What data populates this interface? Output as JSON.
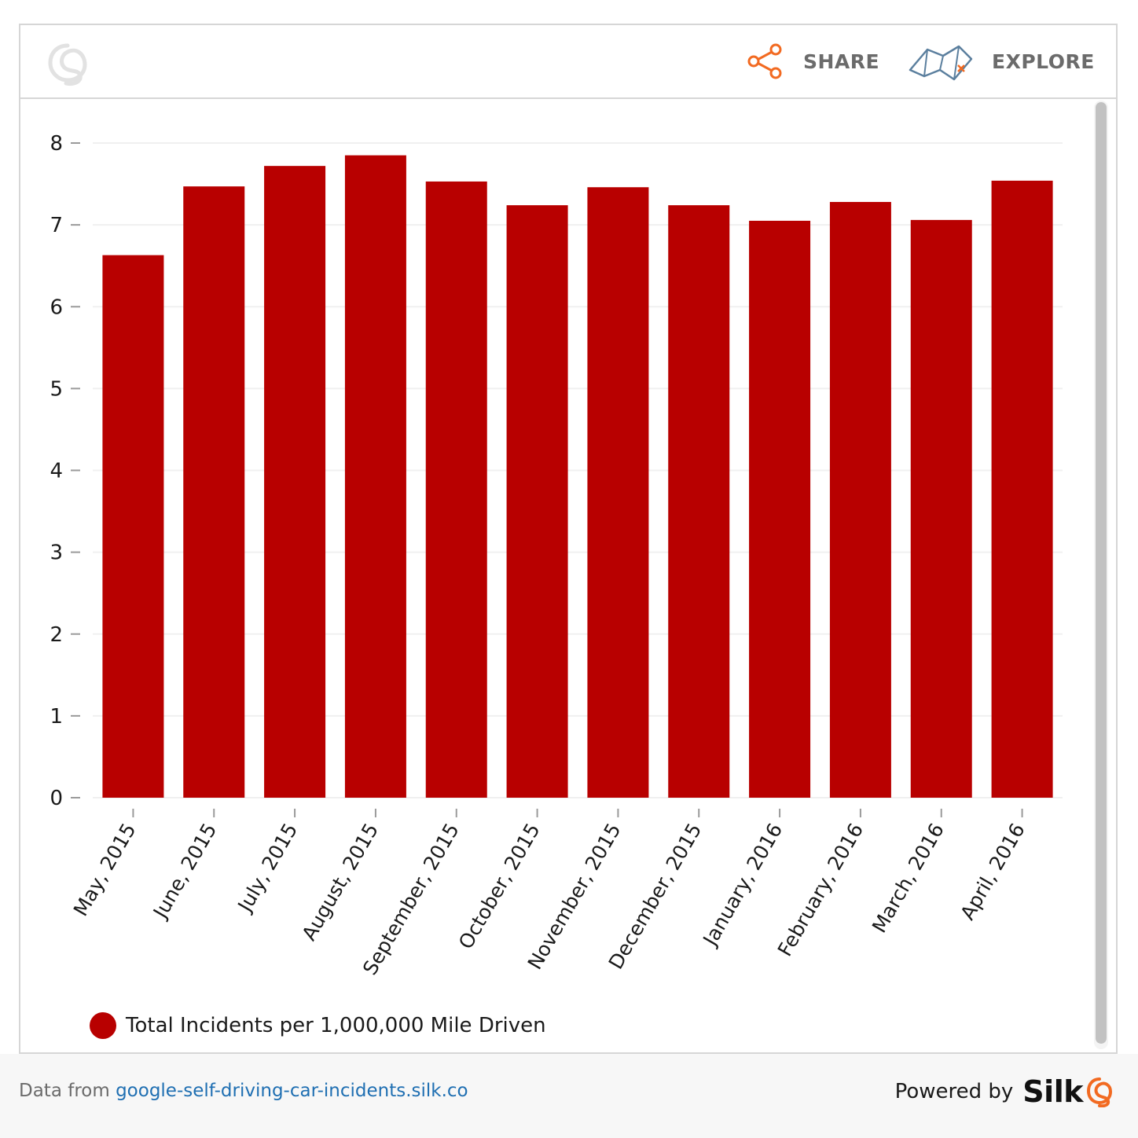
{
  "header": {
    "share_label": "SHARE",
    "explore_label": "EXPLORE",
    "logo_icon": "silk-leaf-icon",
    "share_icon": "share-nodes-icon",
    "explore_icon": "map-icon"
  },
  "colors": {
    "bar": "#b80000",
    "share_accent": "#f26a21",
    "explore_accent": "#5b7f9e",
    "link": "#1f6fb2",
    "brand_accent": "#f26a21"
  },
  "chart_data": {
    "type": "bar",
    "categories": [
      "May, 2015",
      "June, 2015",
      "July, 2015",
      "August, 2015",
      "September, 2015",
      "October, 2015",
      "November, 2015",
      "December, 2015",
      "January, 2016",
      "February, 2016",
      "March, 2016",
      "April, 2016"
    ],
    "series": [
      {
        "name": "Total Incidents per 1,000,000 Mile Driven",
        "values": [
          6.63,
          7.47,
          7.72,
          7.85,
          7.53,
          7.24,
          7.46,
          7.24,
          7.05,
          7.28,
          7.06,
          7.54
        ]
      }
    ],
    "yticks": [
      "0",
      "1",
      "2",
      "3",
      "4",
      "5",
      "6",
      "7",
      "8"
    ],
    "ylim": [
      0,
      8
    ],
    "grid": true,
    "legend_position": "bottom-left",
    "title": "",
    "xlabel": "",
    "ylabel": ""
  },
  "legend": {
    "label": "Total Incidents per 1,000,000 Mile Driven"
  },
  "footer": {
    "source_prefix": "Data from ",
    "source_link": "google-self-driving-car-incidents.silk.co",
    "powered_label": "Powered by",
    "brand": "Silk",
    "brand_icon": "silk-leaf-icon"
  }
}
